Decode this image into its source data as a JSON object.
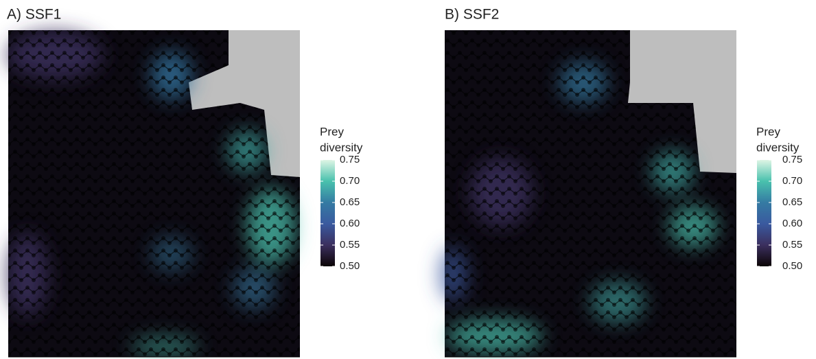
{
  "chart_data": [
    {
      "type": "raster",
      "title": "A) SSF1",
      "legend_title": [
        "Prey",
        "diversity"
      ],
      "colormap": [
        "#0b0405",
        "#3b2f5e",
        "#3a5a9f",
        "#357ba3",
        "#49c1ad",
        "#def5e5"
      ],
      "clim": [
        0.5,
        0.75
      ],
      "cticks": [
        {
          "value": 0.5,
          "label": "0.50"
        },
        0.55,
        {
          "value": 0.6,
          "label": "0.60"
        },
        0.65,
        {
          "value": 0.7,
          "label": "0.70"
        },
        0.75
      ]
    },
    {
      "type": "raster",
      "title": "B) SSF2",
      "legend_title": [
        "Prey",
        "diversity"
      ],
      "colormap": [
        "#0b0405",
        "#3b2f5e",
        "#3a5a9f",
        "#357ba3",
        "#49c1ad",
        "#def5e5"
      ],
      "clim": [
        0.5,
        0.75
      ],
      "cticks": [
        {
          "value": 0.5,
          "label": "0.50"
        },
        0.55,
        {
          "value": 0.6,
          "label": "0.60"
        },
        0.65,
        {
          "value": 0.7,
          "label": "0.70"
        },
        0.75
      ]
    }
  ]
}
